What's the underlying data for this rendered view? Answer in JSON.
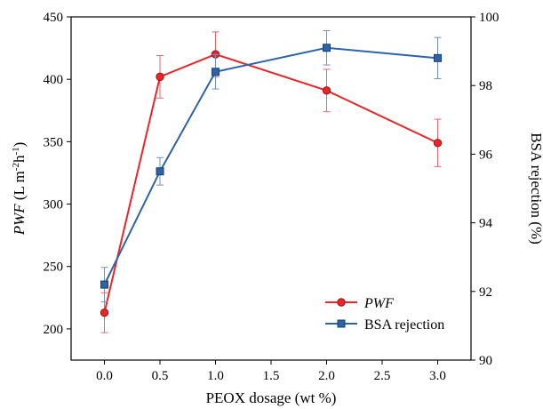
{
  "chart_data": {
    "type": "line",
    "x": [
      0.0,
      0.5,
      1.0,
      2.0,
      3.0
    ],
    "xlabel": "PEOX dosage (wt %)",
    "xlim": [
      -0.3,
      3.3
    ],
    "xticks": [
      "0.0",
      "0.5",
      "1.0",
      "1.5",
      "2.0",
      "2.5",
      "3.0"
    ],
    "ylabel_left": {
      "italic": "PWF",
      "rest": " (L m",
      "sup1": "-2",
      "mid": "h",
      "sup2": "-1",
      "end": ")"
    },
    "ylim_left": [
      175,
      450
    ],
    "yticks_left": [
      "200",
      "250",
      "300",
      "350",
      "400",
      "450"
    ],
    "ylabel_right": "BSA rejection (%)",
    "ylim_right": [
      90,
      100
    ],
    "yticks_right": [
      "90",
      "92",
      "94",
      "96",
      "98",
      "100"
    ],
    "legend_position": "bottom-right",
    "series": [
      {
        "name": "PWF",
        "axis": "left",
        "marker": "circle",
        "color": "#e8262b",
        "values": [
          213,
          402,
          420,
          391,
          349
        ],
        "errors": [
          16,
          17,
          18,
          17,
          19
        ]
      },
      {
        "name": "BSA rejection",
        "axis": "right",
        "marker": "square",
        "color": "#2e63a5",
        "values": [
          92.2,
          95.5,
          98.4,
          99.1,
          98.8
        ],
        "errors": [
          0.5,
          0.4,
          0.5,
          0.5,
          0.6
        ]
      }
    ]
  }
}
